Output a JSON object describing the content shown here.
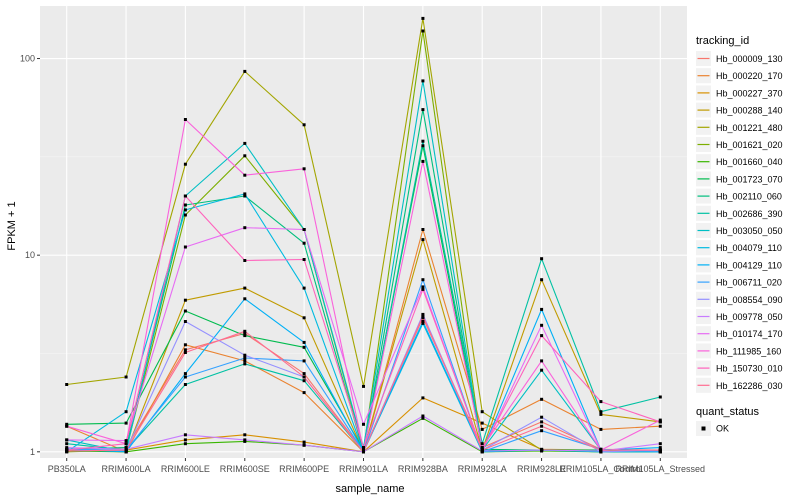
{
  "chart_data": {
    "type": "line",
    "xlabel": "sample_name",
    "ylabel": "FPKM + 1",
    "y_scale": "log10",
    "ylim": [
      0.93,
      185
    ],
    "yticks": [
      1,
      10,
      100
    ],
    "ytick_labels": [
      "1",
      "10",
      "100"
    ],
    "grid": true,
    "legend_position": "right",
    "categories": [
      "PB350LA",
      "RRIM600LA",
      "RRIM600LE",
      "RRIM600SE",
      "RRIM600PE",
      "RRIM901LA",
      "RRIM928BA",
      "RRIM928LA",
      "RRIM928LE",
      "RRIM105LA_Control",
      "RRIM105LA_Stressed"
    ],
    "legend_title": "tracking_id",
    "series": [
      {
        "name": "Hb_000009_130",
        "color": "#F8766D",
        "values": [
          1.02,
          1.05,
          3.3,
          4.0,
          2.5,
          1.01,
          4.8,
          1.05,
          1.42,
          1.03,
          1.02
        ]
      },
      {
        "name": "Hb_000220_170",
        "color": "#EA8331",
        "values": [
          1.35,
          1.0,
          3.5,
          2.9,
          2.0,
          1.0,
          13.5,
          1.3,
          1.85,
          1.3,
          1.35
        ]
      },
      {
        "name": "Hb_000227_370",
        "color": "#D89000",
        "values": [
          1.01,
          1.02,
          1.15,
          1.22,
          1.12,
          1.0,
          1.88,
          1.4,
          1.03,
          1.02,
          1.01
        ]
      },
      {
        "name": "Hb_000288_140",
        "color": "#C09B00",
        "values": [
          1.02,
          1.0,
          5.9,
          6.8,
          4.8,
          1.0,
          12.0,
          1.02,
          7.5,
          1.55,
          1.42
        ]
      },
      {
        "name": "Hb_001221_480",
        "color": "#A3A500",
        "values": [
          2.2,
          2.4,
          29.0,
          86.0,
          46.0,
          2.15,
          160.0,
          1.6,
          1.02,
          1.02,
          1.0
        ]
      },
      {
        "name": "Hb_001621_020",
        "color": "#7CAE00",
        "values": [
          1.0,
          1.02,
          16.0,
          32.0,
          13.5,
          1.02,
          138.0,
          1.02,
          1.02,
          1.02,
          1.02
        ]
      },
      {
        "name": "Hb_001660_040",
        "color": "#39B600",
        "values": [
          1.01,
          1.0,
          1.1,
          1.13,
          1.08,
          1.0,
          1.48,
          1.0,
          1.01,
          1.0,
          1.0
        ]
      },
      {
        "name": "Hb_001723_070",
        "color": "#00BB4E",
        "values": [
          1.38,
          1.4,
          5.2,
          3.9,
          3.4,
          1.02,
          36.0,
          1.03,
          1.02,
          1.0,
          1.0
        ]
      },
      {
        "name": "Hb_002110_060",
        "color": "#00BF7D",
        "values": [
          1.03,
          1.05,
          18.0,
          20.0,
          11.5,
          1.0,
          55.0,
          1.02,
          1.02,
          1.02,
          1.02
        ]
      },
      {
        "name": "Hb_002686_390",
        "color": "#00C1A3",
        "values": [
          1.1,
          1.02,
          2.2,
          2.8,
          2.3,
          1.0,
          38.0,
          1.1,
          9.6,
          1.6,
          1.9
        ]
      },
      {
        "name": "Hb_003050_050",
        "color": "#00BFC4",
        "values": [
          1.15,
          1.0,
          20.0,
          37.0,
          13.5,
          1.05,
          77.0,
          1.02,
          2.6,
          1.02,
          1.02
        ]
      },
      {
        "name": "Hb_004079_110",
        "color": "#00BAE0",
        "values": [
          1.0,
          1.6,
          17.0,
          20.5,
          6.8,
          1.0,
          4.5,
          1.0,
          1.02,
          1.0,
          1.0
        ]
      },
      {
        "name": "Hb_004129_110",
        "color": "#00B0F6",
        "values": [
          1.03,
          1.0,
          2.5,
          6.0,
          3.6,
          1.0,
          4.6,
          1.01,
          5.3,
          1.02,
          1.05
        ]
      },
      {
        "name": "Hb_006711_020",
        "color": "#35A2FF",
        "values": [
          1.03,
          1.02,
          2.4,
          3.0,
          2.9,
          1.0,
          7.5,
          1.0,
          1.28,
          1.03,
          1.0
        ]
      },
      {
        "name": "Hb_008554_090",
        "color": "#9590FF",
        "values": [
          1.01,
          1.02,
          4.6,
          3.1,
          2.4,
          1.0,
          5.0,
          1.02,
          1.5,
          1.0,
          1.02
        ]
      },
      {
        "name": "Hb_009778_050",
        "color": "#C77CFF",
        "values": [
          1.05,
          1.03,
          1.22,
          1.15,
          1.08,
          1.0,
          1.52,
          1.01,
          1.02,
          1.01,
          1.1
        ]
      },
      {
        "name": "Hb_010174_170",
        "color": "#E76BF3",
        "values": [
          1.15,
          1.14,
          11.0,
          13.8,
          13.5,
          1.38,
          6.9,
          1.01,
          4.4,
          1.02,
          1.02
        ]
      },
      {
        "name": "Hb_111985_160",
        "color": "#FA62DB",
        "values": [
          1.35,
          1.1,
          49.0,
          25.5,
          27.5,
          1.02,
          30.0,
          1.05,
          2.9,
          1.02,
          1.45
        ]
      },
      {
        "name": "Hb_150730_010",
        "color": "#FF62BC",
        "values": [
          1.02,
          1.1,
          20.0,
          9.4,
          9.5,
          1.05,
          6.7,
          1.02,
          3.9,
          1.8,
          1.42
        ]
      },
      {
        "name": "Hb_162286_030",
        "color": "#FF6C91",
        "values": [
          1.01,
          1.02,
          3.2,
          4.1,
          2.4,
          1.0,
          4.9,
          1.02,
          1.35,
          1.02,
          1.02
        ]
      }
    ],
    "point_legend_title": "quant_status",
    "point_legend_label": "OK"
  }
}
